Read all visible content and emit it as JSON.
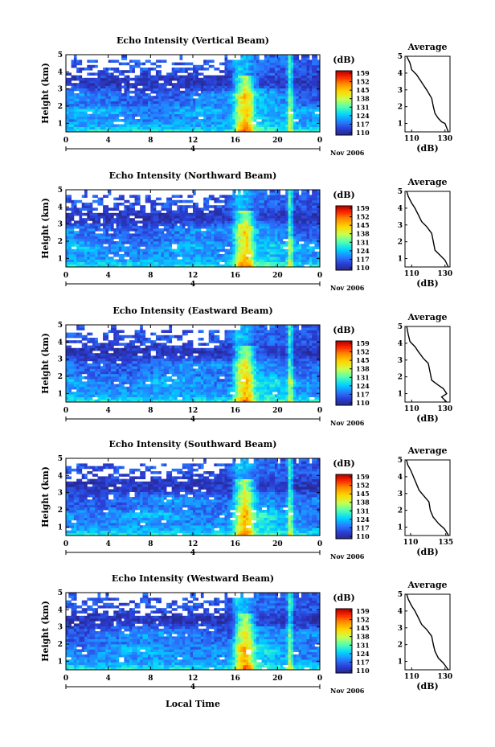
{
  "figure": {
    "xlabel": "Local Time",
    "date_label": "Nov 2006",
    "day_label": "4"
  },
  "colorbar": {
    "label": "(dB)",
    "ticks": [
      "159",
      "152",
      "145",
      "138",
      "131",
      "124",
      "117",
      "110"
    ],
    "colors": [
      "#b40000",
      "#ff2a00",
      "#ff8c00",
      "#ffd700",
      "#c8ff50",
      "#50ffb4",
      "#00d2ff",
      "#2878ff",
      "#2a3cd2",
      "#2a2a8c"
    ]
  },
  "chart_data": [
    {
      "type": "heatmap",
      "title": "Echo Intensity (Vertical Beam)",
      "ylabel": "Height (km)",
      "x_ticks": [
        "0",
        "4",
        "8",
        "12",
        "16",
        "20",
        "0"
      ],
      "y_ticks": [
        "1",
        "2",
        "3",
        "4",
        "5"
      ],
      "xlim": [
        0,
        24
      ],
      "ylim": [
        0.5,
        5
      ],
      "zlim": [
        110,
        159
      ],
      "profile": {
        "title": "Average",
        "xlabel": "(dB)",
        "x_ticks": [
          "110",
          "130"
        ],
        "xlim": [
          106,
          133
        ],
        "y_ticks": [
          "1",
          "2",
          "3",
          "4",
          "5"
        ],
        "points": [
          [
            132,
            0.5
          ],
          [
            130,
            1.0
          ],
          [
            128,
            1.1
          ],
          [
            126,
            1.3
          ],
          [
            124,
            1.6
          ],
          [
            123,
            2.0
          ],
          [
            122,
            2.5
          ],
          [
            119,
            3.0
          ],
          [
            117,
            3.3
          ],
          [
            115,
            3.6
          ],
          [
            113,
            3.9
          ],
          [
            110,
            4.2
          ],
          [
            109,
            4.6
          ],
          [
            107,
            5.0
          ]
        ]
      }
    },
    {
      "type": "heatmap",
      "title": "Echo Intensity (Northward Beam)",
      "ylabel": "Height (km)",
      "x_ticks": [
        "0",
        "4",
        "8",
        "12",
        "16",
        "20",
        "0"
      ],
      "y_ticks": [
        "1",
        "2",
        "3",
        "4",
        "5"
      ],
      "xlim": [
        0,
        24
      ],
      "ylim": [
        0.5,
        5
      ],
      "zlim": [
        110,
        159
      ],
      "profile": {
        "title": "Average",
        "xlabel": "(dB)",
        "x_ticks": [
          "110",
          "130"
        ],
        "xlim": [
          106,
          133
        ],
        "y_ticks": [
          "1",
          "2",
          "3",
          "4",
          "5"
        ],
        "points": [
          [
            132,
            0.5
          ],
          [
            130,
            0.9
          ],
          [
            127,
            1.2
          ],
          [
            124,
            1.5
          ],
          [
            123,
            2.0
          ],
          [
            122,
            2.5
          ],
          [
            119,
            2.9
          ],
          [
            116,
            3.2
          ],
          [
            114,
            3.6
          ],
          [
            112,
            4.0
          ],
          [
            110,
            4.3
          ],
          [
            108,
            4.7
          ],
          [
            107,
            5.0
          ]
        ]
      }
    },
    {
      "type": "heatmap",
      "title": "Echo Intensity (Eastward Beam)",
      "ylabel": "Height (km)",
      "x_ticks": [
        "0",
        "4",
        "8",
        "12",
        "16",
        "20",
        "0"
      ],
      "y_ticks": [
        "1",
        "2",
        "3",
        "4",
        "5"
      ],
      "xlim": [
        0,
        24
      ],
      "ylim": [
        0.5,
        5
      ],
      "zlim": [
        110,
        159
      ],
      "profile": {
        "title": "Average",
        "xlabel": "(dB)",
        "x_ticks": [
          "110",
          "130"
        ],
        "xlim": [
          106,
          133
        ],
        "y_ticks": [
          "1",
          "2",
          "3",
          "4",
          "5"
        ],
        "points": [
          [
            131,
            0.5
          ],
          [
            128,
            0.8
          ],
          [
            131,
            1.0
          ],
          [
            129,
            1.3
          ],
          [
            126,
            1.5
          ],
          [
            122,
            1.8
          ],
          [
            121,
            2.3
          ],
          [
            120,
            2.8
          ],
          [
            117,
            3.1
          ],
          [
            114,
            3.5
          ],
          [
            112,
            3.8
          ],
          [
            109,
            4.1
          ],
          [
            108,
            4.5
          ],
          [
            107,
            5.0
          ]
        ]
      }
    },
    {
      "type": "heatmap",
      "title": "Echo Intensity (Southward Beam)",
      "ylabel": "Height (km)",
      "x_ticks": [
        "0",
        "4",
        "8",
        "12",
        "16",
        "20",
        "0"
      ],
      "y_ticks": [
        "1",
        "2",
        "3",
        "4",
        "5"
      ],
      "xlim": [
        0,
        24
      ],
      "ylim": [
        0.5,
        5
      ],
      "zlim": [
        110,
        159
      ],
      "profile": {
        "title": "Average",
        "xlabel": "(dB)",
        "x_ticks": [
          "110",
          "135"
        ],
        "xlim": [
          106,
          138
        ],
        "y_ticks": [
          "1",
          "2",
          "3",
          "4",
          "5"
        ],
        "points": [
          [
            137,
            0.5
          ],
          [
            134,
            0.9
          ],
          [
            130,
            1.2
          ],
          [
            126,
            1.6
          ],
          [
            124,
            2.0
          ],
          [
            123,
            2.5
          ],
          [
            119,
            2.9
          ],
          [
            116,
            3.2
          ],
          [
            114,
            3.6
          ],
          [
            112,
            4.0
          ],
          [
            110,
            4.4
          ],
          [
            108,
            4.7
          ],
          [
            107,
            5.0
          ]
        ]
      }
    },
    {
      "type": "heatmap",
      "title": "Echo Intensity (Westward Beam)",
      "ylabel": "Height (km)",
      "x_ticks": [
        "0",
        "4",
        "8",
        "12",
        "16",
        "20",
        "0"
      ],
      "y_ticks": [
        "1",
        "2",
        "3",
        "4",
        "5"
      ],
      "xlim": [
        0,
        24
      ],
      "ylim": [
        0.5,
        5
      ],
      "zlim": [
        110,
        159
      ],
      "profile": {
        "title": "Average",
        "xlabel": "(dB)",
        "x_ticks": [
          "110",
          "130"
        ],
        "xlim": [
          106,
          133
        ],
        "y_ticks": [
          "1",
          "2",
          "3",
          "4",
          "5"
        ],
        "points": [
          [
            132,
            0.5
          ],
          [
            129,
            0.9
          ],
          [
            126,
            1.2
          ],
          [
            124,
            1.6
          ],
          [
            123,
            2.0
          ],
          [
            122,
            2.5
          ],
          [
            119,
            2.9
          ],
          [
            116,
            3.2
          ],
          [
            114,
            3.6
          ],
          [
            112,
            4.0
          ],
          [
            110,
            4.3
          ],
          [
            108,
            4.7
          ],
          [
            107,
            5.0
          ]
        ]
      }
    }
  ]
}
